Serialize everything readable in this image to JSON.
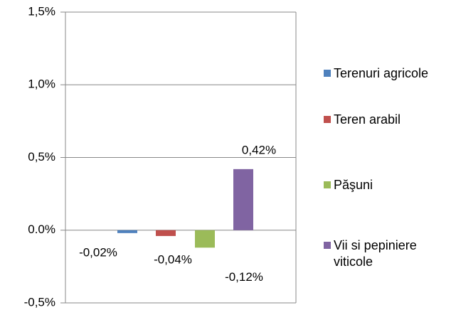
{
  "chart_data": {
    "type": "bar",
    "categories": [
      null
    ],
    "series": [
      {
        "name": "Terenuri agricole",
        "color": "#4f81bd",
        "values": [
          -0.02
        ],
        "value_labels": [
          "-0,02%"
        ]
      },
      {
        "name": "Teren arabil",
        "color": "#c0504d",
        "values": [
          -0.04
        ],
        "value_labels": [
          "-0,04%"
        ]
      },
      {
        "name": "Păşuni",
        "color": "#9bbb59",
        "values": [
          -0.12
        ],
        "value_labels": [
          "-0,12%"
        ]
      },
      {
        "name": "Vii si pepiniere viticole",
        "color": "#8064a2",
        "values": [
          0.42
        ],
        "value_labels": [
          "0,42%"
        ]
      }
    ],
    "ylim": [
      -0.5,
      1.5
    ],
    "yticks": [
      {
        "value": -0.5,
        "label": "-0,5%"
      },
      {
        "value": 0,
        "label": "0.0%"
      },
      {
        "value": 0.5,
        "label": "0,5%"
      },
      {
        "value": 1.0,
        "label": "1,0%"
      },
      {
        "value": 1.5,
        "label": "1,5%"
      }
    ],
    "grid": true,
    "legend": "right"
  }
}
